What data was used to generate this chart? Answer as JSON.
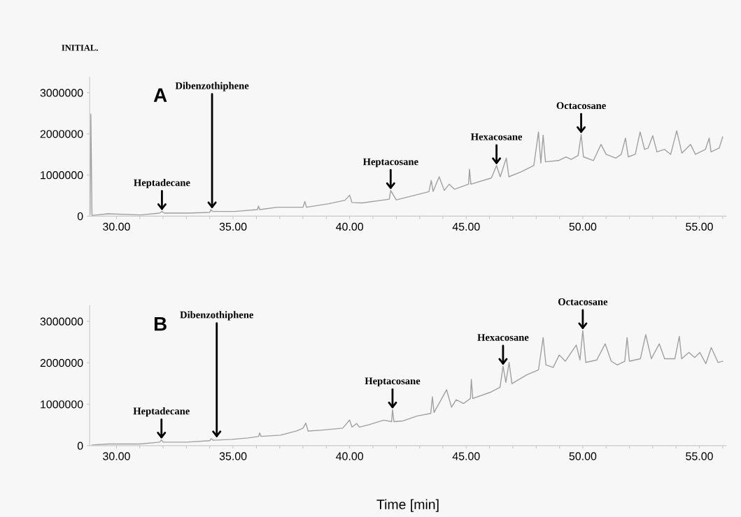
{
  "chart_data": [
    {
      "type": "line",
      "title": "A",
      "annotations": [
        "INITIAL.",
        {
          "text": "Heptadecane",
          "x": 31.95,
          "y": 113000
        },
        {
          "text": "Dibenzothiphene",
          "x": 34.1,
          "y": 158000
        },
        {
          "text": "Heptacosane",
          "x": 41.76,
          "y": 623000
        },
        {
          "text": "Hexacosane",
          "x": 46.3,
          "y": 1229000
        },
        {
          "text": "Octacosane",
          "x": 49.93,
          "y": 1985000
        }
      ],
      "xlim": [
        28.85,
        56.15
      ],
      "ylim": [
        0,
        3380000
      ],
      "xticks": [
        {
          "value": 30,
          "label": "30.00"
        },
        {
          "value": 31,
          "label": null
        },
        {
          "value": 32,
          "label": null
        },
        {
          "value": 33,
          "label": null
        },
        {
          "value": 34,
          "label": null
        },
        {
          "value": 35,
          "label": "35.00"
        },
        {
          "value": 36,
          "label": null
        },
        {
          "value": 37,
          "label": null
        },
        {
          "value": 38,
          "label": null
        },
        {
          "value": 39,
          "label": null
        },
        {
          "value": 40,
          "label": "40.00"
        },
        {
          "value": 41,
          "label": null
        },
        {
          "value": 42,
          "label": null
        },
        {
          "value": 43,
          "label": null
        },
        {
          "value": 44,
          "label": null
        },
        {
          "value": 45,
          "label": "45.00"
        },
        {
          "value": 46,
          "label": null
        },
        {
          "value": 47,
          "label": null
        },
        {
          "value": 48,
          "label": null
        },
        {
          "value": 49,
          "label": null
        },
        {
          "value": 50,
          "label": "50.00"
        },
        {
          "value": 51,
          "label": null
        },
        {
          "value": 52,
          "label": null
        },
        {
          "value": 53,
          "label": null
        },
        {
          "value": 54,
          "label": null
        },
        {
          "value": 55,
          "label": "55.00"
        },
        {
          "value": 56,
          "label": null
        }
      ],
      "yticks": [
        0,
        1000000,
        2000000,
        3000000
      ],
      "grid": false,
      "series": [
        {
          "color": "#a0a0a0",
          "x": [
            28.87,
            28.9,
            28.95,
            29.63,
            31.04,
            31.85,
            31.95,
            32.05,
            33.06,
            34.0,
            34.05,
            34.12,
            35.08,
            36.05,
            36.09,
            36.15,
            36.9,
            38.0,
            38.08,
            38.15,
            39.1,
            39.8,
            40.0,
            40.1,
            40.53,
            41.7,
            41.76,
            42.0,
            43.4,
            43.5,
            43.58,
            43.84,
            44.06,
            44.27,
            44.5,
            45.1,
            45.14,
            45.2,
            46.08,
            46.3,
            46.46,
            46.72,
            46.83,
            47.36,
            47.9,
            48.1,
            48.2,
            48.3,
            48.4,
            48.96,
            49.28,
            49.5,
            49.8,
            49.93,
            50.03,
            50.46,
            50.78,
            51.0,
            51.42,
            51.65,
            51.83,
            51.95,
            52.25,
            52.46,
            52.65,
            52.8,
            53.0,
            53.18,
            53.5,
            53.77,
            54.03,
            54.25,
            54.62,
            54.83,
            55.26,
            55.42,
            55.5,
            55.85,
            56.0
          ],
          "values": [
            45000,
            2480000,
            17000,
            57000,
            28000,
            74000,
            113000,
            74000,
            74000,
            90000,
            158000,
            113000,
            113000,
            158000,
            243000,
            158000,
            215000,
            215000,
            356000,
            215000,
            300000,
            385000,
            509000,
            330000,
            320000,
            410000,
            623000,
            393000,
            593000,
            866000,
            600000,
            956000,
            623000,
            775000,
            654000,
            775000,
            1138000,
            775000,
            926000,
            1229000,
            956000,
            1410000,
            956000,
            1077000,
            1229000,
            2046000,
            1289000,
            1967000,
            1320000,
            1350000,
            1440000,
            1380000,
            1471000,
            1985000,
            1440000,
            1350000,
            1743000,
            1501000,
            1410000,
            1501000,
            1895000,
            1440000,
            1501000,
            2046000,
            1622000,
            1653000,
            1955000,
            1562000,
            1622000,
            1501000,
            2076000,
            1531000,
            1743000,
            1501000,
            1622000,
            1895000,
            1562000,
            1653000,
            1925000
          ]
        }
      ]
    },
    {
      "type": "line",
      "title": "B",
      "xlabel": "Time [min]",
      "annotations": [
        {
          "text": "Heptadecane",
          "x": 31.93,
          "y": 140000
        },
        {
          "text": "Dibenzothiphene",
          "x": 34.3,
          "y": 168000
        },
        {
          "text": "Heptacosane",
          "x": 41.84,
          "y": 867000
        },
        {
          "text": "Hexacosane",
          "x": 46.58,
          "y": 1917000
        },
        {
          "text": "Octacosane",
          "x": 50.0,
          "y": 2776000
        }
      ],
      "xlim": [
        28.85,
        56.15
      ],
      "ylim": [
        0,
        3380000
      ],
      "xticks": [
        {
          "value": 30,
          "label": "30.00"
        },
        {
          "value": 31,
          "label": null
        },
        {
          "value": 32,
          "label": null
        },
        {
          "value": 33,
          "label": null
        },
        {
          "value": 34,
          "label": null
        },
        {
          "value": 35,
          "label": "35.00"
        },
        {
          "value": 36,
          "label": null
        },
        {
          "value": 37,
          "label": null
        },
        {
          "value": 38,
          "label": null
        },
        {
          "value": 39,
          "label": null
        },
        {
          "value": 40,
          "label": "40.00"
        },
        {
          "value": 41,
          "label": null
        },
        {
          "value": 42,
          "label": null
        },
        {
          "value": 43,
          "label": null
        },
        {
          "value": 44,
          "label": null
        },
        {
          "value": 45,
          "label": "45.00"
        },
        {
          "value": 46,
          "label": null
        },
        {
          "value": 47,
          "label": null
        },
        {
          "value": 48,
          "label": null
        },
        {
          "value": 49,
          "label": null
        },
        {
          "value": 50,
          "label": "50.00"
        },
        {
          "value": 51,
          "label": null
        },
        {
          "value": 52,
          "label": null
        },
        {
          "value": 53,
          "label": null
        },
        {
          "value": 54,
          "label": null
        },
        {
          "value": 55,
          "label": "55.00"
        },
        {
          "value": 56,
          "label": null
        }
      ],
      "yticks": [
        0,
        1000000,
        2000000,
        3000000
      ],
      "grid": false,
      "series": [
        {
          "color": "#a0a0a0",
          "x": [
            28.96,
            29.65,
            31.0,
            31.85,
            31.93,
            32.0,
            33.0,
            34.0,
            34.06,
            34.15,
            34.95,
            35.64,
            36.1,
            36.14,
            36.2,
            37.03,
            37.72,
            38.0,
            38.12,
            38.22,
            38.81,
            39.7,
            40.0,
            40.1,
            40.3,
            40.42,
            40.83,
            41.46,
            41.8,
            41.84,
            41.9,
            42.29,
            42.9,
            43.48,
            43.55,
            43.62,
            44.16,
            44.37,
            44.57,
            44.89,
            45.18,
            45.22,
            45.28,
            46.03,
            46.45,
            46.58,
            46.7,
            46.84,
            46.96,
            47.59,
            48.1,
            48.3,
            48.42,
            48.73,
            48.99,
            49.25,
            49.72,
            49.88,
            50.0,
            50.13,
            50.6,
            50.96,
            51.22,
            51.48,
            51.8,
            51.9,
            52.0,
            52.47,
            52.7,
            52.94,
            53.28,
            53.51,
            53.95,
            54.14,
            54.24,
            54.55,
            54.8,
            55.02,
            55.28,
            55.51,
            55.8,
            56.0
          ],
          "values": [
            17000,
            39000,
            39000,
            84000,
            140000,
            84000,
            84000,
            120000,
            168000,
            130000,
            151000,
            185000,
            224000,
            308000,
            224000,
            252000,
            353000,
            421000,
            544000,
            353000,
            376000,
            421000,
            617000,
            449000,
            533000,
            447000,
            507000,
            615000,
            579000,
            867000,
            579000,
            597000,
            717000,
            777000,
            1180000,
            800000,
            1347000,
            927000,
            1107000,
            1017000,
            1137000,
            1599000,
            1137000,
            1287000,
            1407000,
            1917000,
            1527000,
            2007000,
            1497000,
            1707000,
            1827000,
            2608000,
            1947000,
            1887000,
            2187000,
            2037000,
            2427000,
            2067000,
            2776000,
            2007000,
            2067000,
            2457000,
            2037000,
            1947000,
            2037000,
            2608000,
            2037000,
            2097000,
            2678000,
            2097000,
            2457000,
            2097000,
            2097000,
            2638000,
            2097000,
            2247000,
            2127000,
            2247000,
            1977000,
            2367000,
            2007000,
            2037000
          ]
        }
      ]
    }
  ]
}
